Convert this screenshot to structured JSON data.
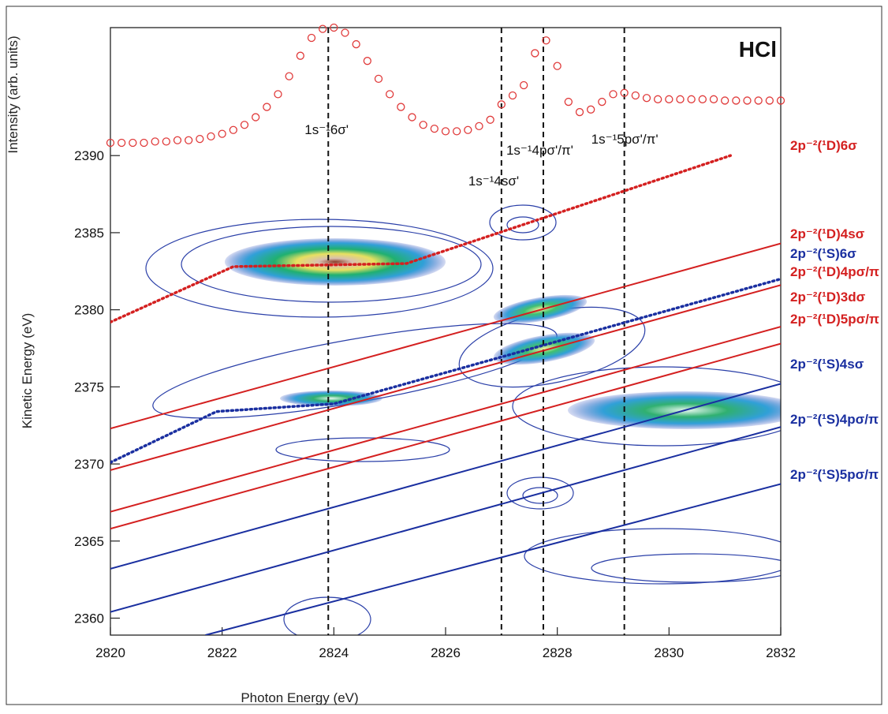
{
  "chart_data": {
    "type": "line",
    "title": "HCl",
    "xlabel": "Photon Energy (eV)",
    "ylabel": "Kinetic Energy (eV)",
    "xlim": [
      2820,
      2832
    ],
    "xticks": [
      2820,
      2822,
      2824,
      2826,
      2828,
      2830,
      2832
    ],
    "ylim": [
      2358.9,
      2398.3
    ],
    "yticks": [
      2360,
      2365,
      2370,
      2375,
      2380,
      2385,
      2390
    ],
    "intensity": {
      "label": "Intensity (arb. units)",
      "color": "#e03a3a",
      "ylim": [
        0,
        1
      ],
      "x": [
        2820,
        2820.2,
        2820.4,
        2820.6,
        2820.8,
        2821,
        2821.2,
        2821.4,
        2821.6,
        2821.8,
        2822,
        2822.2,
        2822.4,
        2822.6,
        2822.8,
        2823,
        2823.2,
        2823.4,
        2823.6,
        2823.8,
        2824,
        2824.2,
        2824.4,
        2824.6,
        2824.8,
        2825,
        2825.2,
        2825.4,
        2825.6,
        2825.8,
        2826,
        2826.2,
        2826.4,
        2826.6,
        2826.8,
        2827,
        2827.2,
        2827.4,
        2827.6,
        2827.8,
        2828,
        2828.2,
        2828.4,
        2828.6,
        2828.8,
        2829,
        2829.2,
        2829.4,
        2829.6,
        2829.8,
        2830,
        2830.2,
        2830.4,
        2830.6,
        2830.8,
        2831,
        2831.2,
        2831.4,
        2831.6,
        2831.8,
        2832
      ],
      "values": [
        0.1,
        0.1,
        0.1,
        0.1,
        0.11,
        0.11,
        0.12,
        0.12,
        0.13,
        0.15,
        0.17,
        0.2,
        0.24,
        0.3,
        0.38,
        0.48,
        0.62,
        0.78,
        0.92,
        0.99,
        1.0,
        0.96,
        0.87,
        0.74,
        0.6,
        0.48,
        0.38,
        0.3,
        0.24,
        0.21,
        0.19,
        0.19,
        0.2,
        0.23,
        0.28,
        0.4,
        0.47,
        0.55,
        0.8,
        0.9,
        0.7,
        0.42,
        0.34,
        0.36,
        0.42,
        0.48,
        0.49,
        0.47,
        0.45,
        0.44,
        0.44,
        0.44,
        0.44,
        0.44,
        0.44,
        0.43,
        0.43,
        0.43,
        0.43,
        0.43,
        0.43
      ]
    },
    "vlines": [
      {
        "x": 2823.9,
        "label": "1s⁻¹6σ'"
      },
      {
        "x": 2827.0,
        "label": "1s⁻¹4sσ'"
      },
      {
        "x": 2827.75,
        "label": "1s⁻¹4pσ'/π'"
      },
      {
        "x": 2829.2,
        "label": "1s⁻¹5pσ'/π'"
      }
    ],
    "series": [
      {
        "name": "2p⁻²(¹D)6σ",
        "color": "#d42020",
        "style": "dotted",
        "x": [
          2820,
          2822.2,
          2825.3,
          2831.1
        ],
        "values": [
          2379.2,
          2382.8,
          2383.0,
          2390.0
        ]
      },
      {
        "name": "2p⁻²(¹D)4sσ",
        "color": "#d42020",
        "style": "solid",
        "x": [
          2820,
          2832
        ],
        "values": [
          2372.3,
          2384.3
        ]
      },
      {
        "name": "2p⁻²(¹S)6σ",
        "color": "#1a2fa0",
        "style": "dotted",
        "x": [
          2820,
          2821.9,
          2824,
          2832
        ],
        "values": [
          2370.1,
          2373.4,
          2373.9,
          2382.0
        ]
      },
      {
        "name": "2p⁻²(¹D)4pσ/π",
        "color": "#d42020",
        "style": "solid",
        "x": [
          2820,
          2832
        ],
        "values": [
          2369.6,
          2381.6
        ]
      },
      {
        "name": "2p⁻²(¹D)3dσ",
        "color": "#d42020",
        "style": "solid",
        "x": [
          2820,
          2832
        ],
        "values": [
          2366.9,
          2378.9
        ]
      },
      {
        "name": "2p⁻²(¹D)5pσ/π",
        "color": "#d42020",
        "style": "solid",
        "x": [
          2820,
          2832
        ],
        "values": [
          2365.8,
          2377.8
        ]
      },
      {
        "name": "2p⁻²(¹S)4sσ",
        "color": "#1a2fa0",
        "style": "solid",
        "x": [
          2820,
          2832
        ],
        "values": [
          2363.2,
          2375.2
        ]
      },
      {
        "name": "2p⁻²(¹S)4pσ/π",
        "color": "#1a2fa0",
        "style": "solid",
        "x": [
          2820,
          2832
        ],
        "values": [
          2360.4,
          2372.4
        ]
      },
      {
        "name": "2p⁻²(¹S)5pσ/π",
        "color": "#1a2fa0",
        "style": "solid",
        "x": [
          2821.7,
          2832
        ],
        "values": [
          2358.9,
          2368.7
        ]
      }
    ]
  }
}
